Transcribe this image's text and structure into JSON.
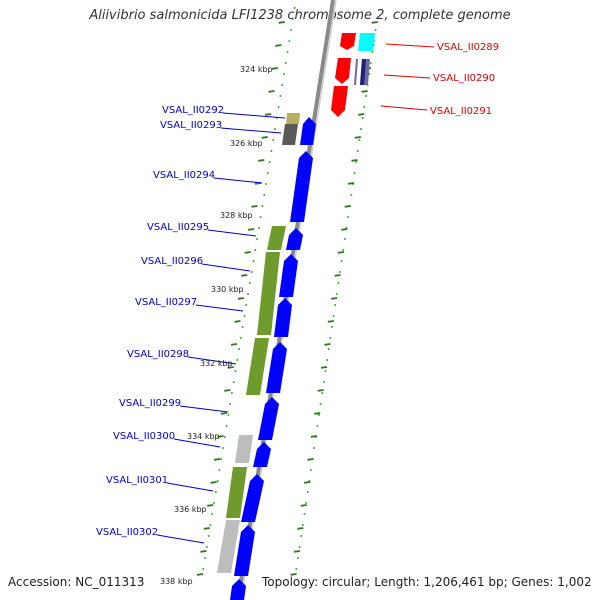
{
  "title": "Aliivibrio salmonicida LFI1238 chromosome 2, complete genome",
  "footer": {
    "accession": "Accession: NC_011313",
    "topology": "Topology: circular; Length: 1,206,461 bp; Genes: 1,002"
  },
  "colors": {
    "forward_strand": "#0000ff",
    "reverse_strand": "#ff0000",
    "label_left": "#0000cc",
    "label_right": "#dd0000",
    "backbone": "#888888",
    "tick": "#2a7a1a",
    "dots": "#33aa33"
  },
  "tick_labels": [
    "324 kbp",
    "326 kbp",
    "328 kbp",
    "330 kbp",
    "332 kbp",
    "334 kbp",
    "336 kbp",
    "338 kbp"
  ],
  "left_genes": [
    "VSAL_II0292",
    "VSAL_II0293",
    "VSAL_II0294",
    "VSAL_II0295",
    "VSAL_II0296",
    "VSAL_II0297",
    "VSAL_II0298",
    "VSAL_II0299",
    "VSAL_II0300",
    "VSAL_II0301",
    "VSAL_II0302"
  ],
  "right_genes": [
    "VSAL_II0289",
    "VSAL_II0290",
    "VSAL_II0291"
  ]
}
